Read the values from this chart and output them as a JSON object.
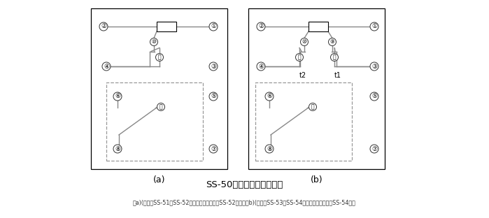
{
  "title": "SS-50系列背后端子接线图",
  "caption": "（a)(背视）SS-51、SS-52型，图中虚线部分仅SS-52型有；（b)(背视）SS-53、SS-54型，图中虚线部分仅SS-54型有",
  "label_a": "(a)",
  "label_b": "(b)",
  "bg_color": "#ffffff",
  "line_color": "#888888",
  "dark_color": "#333333",
  "circle_color": "#333333",
  "dashed_color": "#999999"
}
